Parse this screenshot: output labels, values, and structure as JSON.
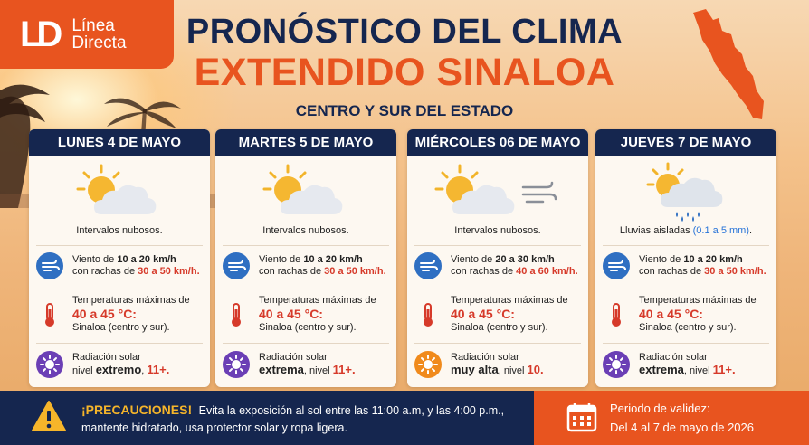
{
  "brand": {
    "logo_mark": "LD",
    "name_line1": "Línea",
    "name_line2": "Directa"
  },
  "header": {
    "title_line1": "PRONÓSTICO DEL CLIMA",
    "title_line2": "EXTENDIDO SINALOA",
    "subtitle": "CENTRO Y SUR DEL ESTADO"
  },
  "colors": {
    "navy": "#15264f",
    "orange": "#e8541f",
    "red_text": "#d63a2a",
    "blue_text": "#2874d8",
    "yellow": "#f6b52a"
  },
  "days": [
    {
      "title": "LUNES 4 DE MAYO",
      "icon": "partly-cloudy-icon",
      "condition": "Intervalos nubosos.",
      "condition_extra": "",
      "wind_line1_pre": "Viento de ",
      "wind_range": "10 a 20 km/h",
      "wind_line2_pre": "con rachas de ",
      "gusts": "30 a 50 km/h.",
      "temp_label": "Temperaturas máximas de",
      "temp_value": "40 a 45 °C:",
      "temp_area": "Sinaloa (centro y sur).",
      "rad_label": "Radiación solar",
      "rad_pre": "nivel ",
      "rad_level": "extremo",
      "rad_post": ", ",
      "rad_index": "11+.",
      "rad_color": "#6b3fb5"
    },
    {
      "title": "MARTES 5 DE MAYO",
      "icon": "partly-cloudy-icon",
      "condition": "Intervalos nubosos.",
      "condition_extra": "",
      "wind_line1_pre": "Viento de ",
      "wind_range": "10 a 20 km/h",
      "wind_line2_pre": "con rachas de ",
      "gusts": "30 a 50 km/h.",
      "temp_label": "Temperaturas máximas de",
      "temp_value": "40 a 45 °C:",
      "temp_area": "Sinaloa (centro y sur).",
      "rad_label": "Radiación solar",
      "rad_pre": "",
      "rad_level": "extrema",
      "rad_post": ", nivel ",
      "rad_index": "11+.",
      "rad_color": "#6b3fb5"
    },
    {
      "title": "MIÉRCOLES 06 DE MAYO",
      "icon": "partly-cloudy-windy-icon",
      "condition": "Intervalos nubosos.",
      "condition_extra": "",
      "wind_line1_pre": "Viento de ",
      "wind_range": "20 a 30 km/h",
      "wind_line2_pre": "con rachas de ",
      "gusts": "40 a 60 km/h.",
      "temp_label": "Temperaturas máximas de",
      "temp_value": "40 a 45 °C:",
      "temp_area": "Sinaloa (centro y sur).",
      "rad_label": "Radiación solar",
      "rad_pre": "",
      "rad_level": "muy alta",
      "rad_post": ", nivel ",
      "rad_index": "10.",
      "rad_color": "#f08a1c"
    },
    {
      "title": "JUEVES 7 DE MAYO",
      "icon": "sun-rain-cloud-icon",
      "condition": "Lluvias aisladas ",
      "condition_extra": "(0.1 a 5 mm)",
      "condition_end": ".",
      "wind_line1_pre": "Viento de ",
      "wind_range": "10 a 20 km/h",
      "wind_line2_pre": "con rachas de ",
      "gusts": "30 a 50 km/h.",
      "temp_label": "Temperaturas máximas de",
      "temp_value": "40 a 45 °C:",
      "temp_area": "Sinaloa (centro y sur).",
      "rad_label": "Radiación solar",
      "rad_pre": "",
      "rad_level": "extrema",
      "rad_post": ", nivel ",
      "rad_index": "11+.",
      "rad_color": "#6b3fb5"
    }
  ],
  "precautions": {
    "title": "¡PRECAUCIONES!",
    "text": "Evita la exposición al sol entre las 11:00 a.m, y las 4:00 p.m., mantente hidratado, usa protector solar y ropa ligera."
  },
  "validity": {
    "label": "Periodo de validez:",
    "dates": "Del 4 al 7 de mayo de 2026"
  }
}
